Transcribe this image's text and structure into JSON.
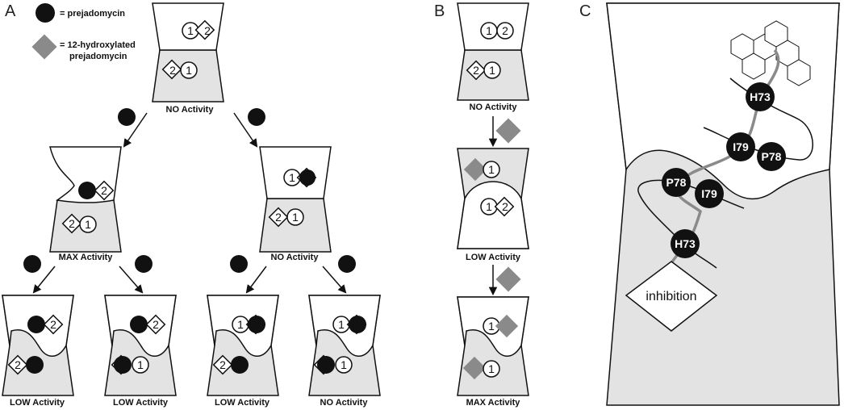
{
  "panels": {
    "a": "A",
    "b": "B",
    "c": "C"
  },
  "legend": {
    "circle_text": "= prejadomycin",
    "diamond_text_line1": "= 12-hydroxylated",
    "diamond_text_line2": "prejadomycin"
  },
  "labels": {
    "one": "1",
    "two": "2"
  },
  "activity": {
    "a_top": "NO Activity",
    "a_mid_left": "MAX Activity",
    "a_mid_right": "NO Activity",
    "a_bot_1": "LOW Activity",
    "a_bot_2": "LOW Activity",
    "a_bot_3": "LOW Activity",
    "a_bot_4": "NO Activity",
    "b_1": "NO Activity",
    "b_2": "LOW Activity",
    "b_3": "MAX Activity"
  },
  "residues": {
    "h73_top": "H73",
    "i79_top": "I79",
    "p78_top": "P78",
    "p78_bot": "P78",
    "i79_bot": "I79",
    "h73_bot": "H73"
  },
  "inhibition": "inhibition",
  "colors": {
    "shade": "#e3e3e3",
    "ligand_gray": "#8a8a8a",
    "line": "#111111"
  }
}
